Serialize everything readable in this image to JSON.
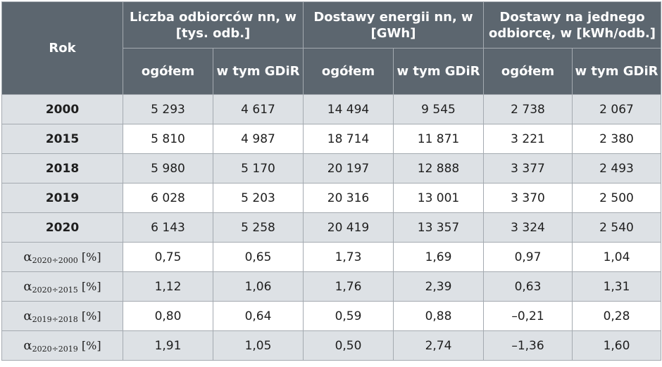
{
  "table": {
    "col_rok": "Rok",
    "groups": [
      "Liczba odbiorców nn, w [tys. odb.]",
      "Dostawy energii nn, w [GWh]",
      "Dostawy na jednego odbiorcę, w [kWh/odb.]"
    ],
    "sub_total": "ogółem",
    "sub_gdir": "w tym GDiR",
    "rows": [
      {
        "label": "2000",
        "values": [
          "5 293",
          "4 617",
          "14 494",
          "9 545",
          "2 738",
          "2 067"
        ]
      },
      {
        "label": "2015",
        "values": [
          "5 810",
          "4 987",
          "18 714",
          "11 871",
          "3 221",
          "2 380"
        ]
      },
      {
        "label": "2018",
        "values": [
          "5 980",
          "5 170",
          "20 197",
          "12 888",
          "3 377",
          "2 493"
        ]
      },
      {
        "label": "2019",
        "values": [
          "6 028",
          "5 203",
          "20 316",
          "13 001",
          "3 370",
          "2 500"
        ]
      },
      {
        "label": "2020",
        "values": [
          "6 143",
          "5 258",
          "20 419",
          "13 357",
          "3 324",
          "2 540"
        ]
      }
    ],
    "alpha_rows": [
      {
        "symbol": "α",
        "sub": "2020÷2000",
        "unit": "[%]",
        "values": [
          "0,75",
          "0,65",
          "1,73",
          "1,69",
          "0,97",
          "1,04"
        ]
      },
      {
        "symbol": "α",
        "sub": "2020÷2015",
        "unit": "[%]",
        "values": [
          "1,12",
          "1,06",
          "1,76",
          "2,39",
          "0,63",
          "1,31"
        ]
      },
      {
        "symbol": "α",
        "sub": "2019÷2018",
        "unit": "[%]",
        "values": [
          "0,80",
          "0,64",
          "0,59",
          "0,88",
          "–0,21",
          "0,28"
        ]
      },
      {
        "symbol": "α",
        "sub": "2020÷2019",
        "unit": "[%]",
        "values": [
          "1,91",
          "1,05",
          "0,50",
          "2,74",
          "–1,36",
          "1,60"
        ]
      }
    ]
  }
}
